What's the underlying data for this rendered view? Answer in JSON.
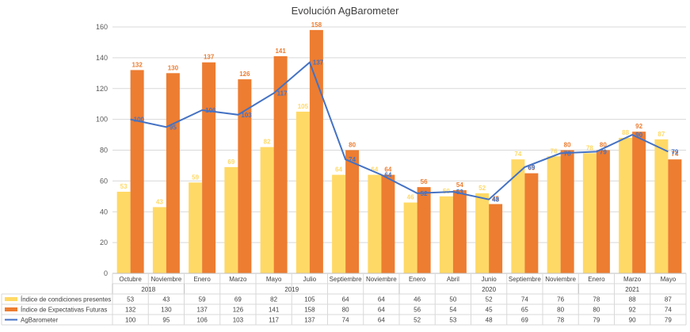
{
  "chart_data": {
    "type": "bar",
    "title": "Evolución AgBarometer",
    "ylim": [
      0,
      160
    ],
    "yticks": [
      0,
      20,
      40,
      60,
      80,
      100,
      120,
      140,
      160
    ],
    "grid": true,
    "legend_placement": "bottom-left (data table)",
    "categories": [
      "Octubre",
      "Noviembre",
      "Enero",
      "Marzo",
      "Mayo",
      "Julio",
      "Septiembre",
      "Noviembre",
      "Enero",
      "Abril",
      "Junio",
      "Septiembre",
      "Noviembre",
      "Enero",
      "Marzo",
      "Mayo"
    ],
    "year_groups": [
      {
        "label": "2018",
        "count": 2
      },
      {
        "label": "2019",
        "count": 6
      },
      {
        "label": "2020",
        "count": 5
      },
      {
        "label": "2021",
        "count": 3
      }
    ],
    "series": [
      {
        "name": "Índice de condiciones presentes",
        "kind": "bar",
        "color": "#FFD966",
        "values": [
          53,
          43,
          59,
          69,
          82,
          105,
          64,
          64,
          46,
          50,
          52,
          74,
          76,
          78,
          88,
          87
        ]
      },
      {
        "name": "Índice de Expectativas Futuras",
        "kind": "bar",
        "color": "#ED7D31",
        "values": [
          132,
          130,
          137,
          126,
          141,
          158,
          80,
          64,
          56,
          54,
          45,
          65,
          80,
          80,
          92,
          74
        ]
      },
      {
        "name": "AgBarometer",
        "kind": "line",
        "color": "#4472C4",
        "values": [
          100,
          95,
          106,
          103,
          117,
          137,
          74,
          64,
          52,
          53,
          48,
          69,
          78,
          79,
          90,
          79
        ]
      }
    ]
  }
}
